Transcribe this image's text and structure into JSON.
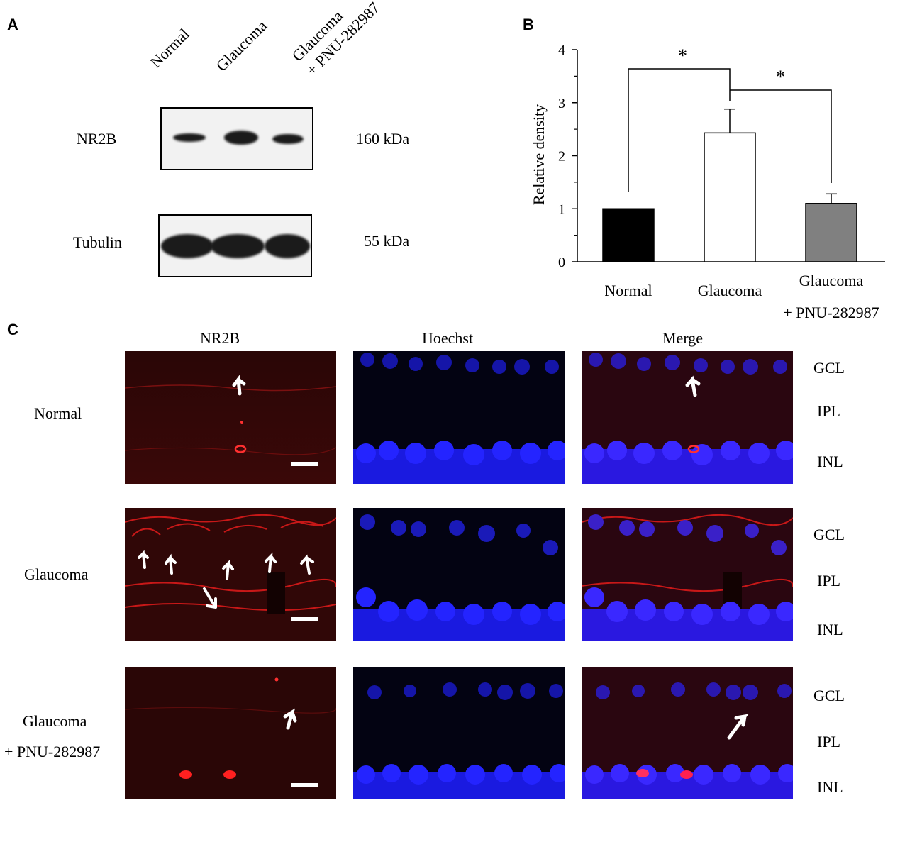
{
  "panels": {
    "a": "A",
    "b": "B",
    "c": "C"
  },
  "western_blot": {
    "lanes": [
      "Normal",
      "Glaucoma",
      "Glaucoma",
      "+ PNU-282987"
    ],
    "rows": [
      {
        "name": "NR2B",
        "size": "160 kDa"
      },
      {
        "name": "Tubulin",
        "size": "55 kDa"
      }
    ]
  },
  "chart_data": {
    "type": "bar",
    "categories": [
      "Normal",
      "Glaucoma",
      "Glaucoma + PNU-282987"
    ],
    "category_lines": [
      [
        "Normal"
      ],
      [
        "Glaucoma"
      ],
      [
        "Glaucoma",
        "+ PNU-282987"
      ]
    ],
    "values": [
      1.0,
      2.43,
      1.1
    ],
    "errors": [
      0,
      0.45,
      0.18
    ],
    "bar_colors": [
      "#000000",
      "#ffffff",
      "#808080"
    ],
    "ylabel": "Relative density",
    "ylim": [
      0,
      4
    ],
    "yticks": [
      "0",
      "1",
      "2",
      "3",
      "4"
    ],
    "significance": [
      {
        "from": 0,
        "to": 1,
        "label": "*"
      },
      {
        "from": 1,
        "to": 2,
        "label": "*"
      }
    ]
  },
  "microscopy": {
    "columns": [
      "NR2B",
      "Hoechst",
      "Merge"
    ],
    "rows": [
      {
        "label_lines": [
          "Normal"
        ],
        "layers": [
          "GCL",
          "IPL",
          "INL"
        ]
      },
      {
        "label_lines": [
          "Glaucoma"
        ],
        "layers": [
          "GCL",
          "IPL",
          "INL"
        ]
      },
      {
        "label_lines": [
          "Glaucoma",
          "+ PNU-282987"
        ],
        "layers": [
          "GCL",
          "IPL",
          "INL"
        ]
      }
    ]
  },
  "colors": {
    "red_channel": "#ff2020",
    "blue_channel": "#1a1aff",
    "arrow": "#ffffff"
  }
}
